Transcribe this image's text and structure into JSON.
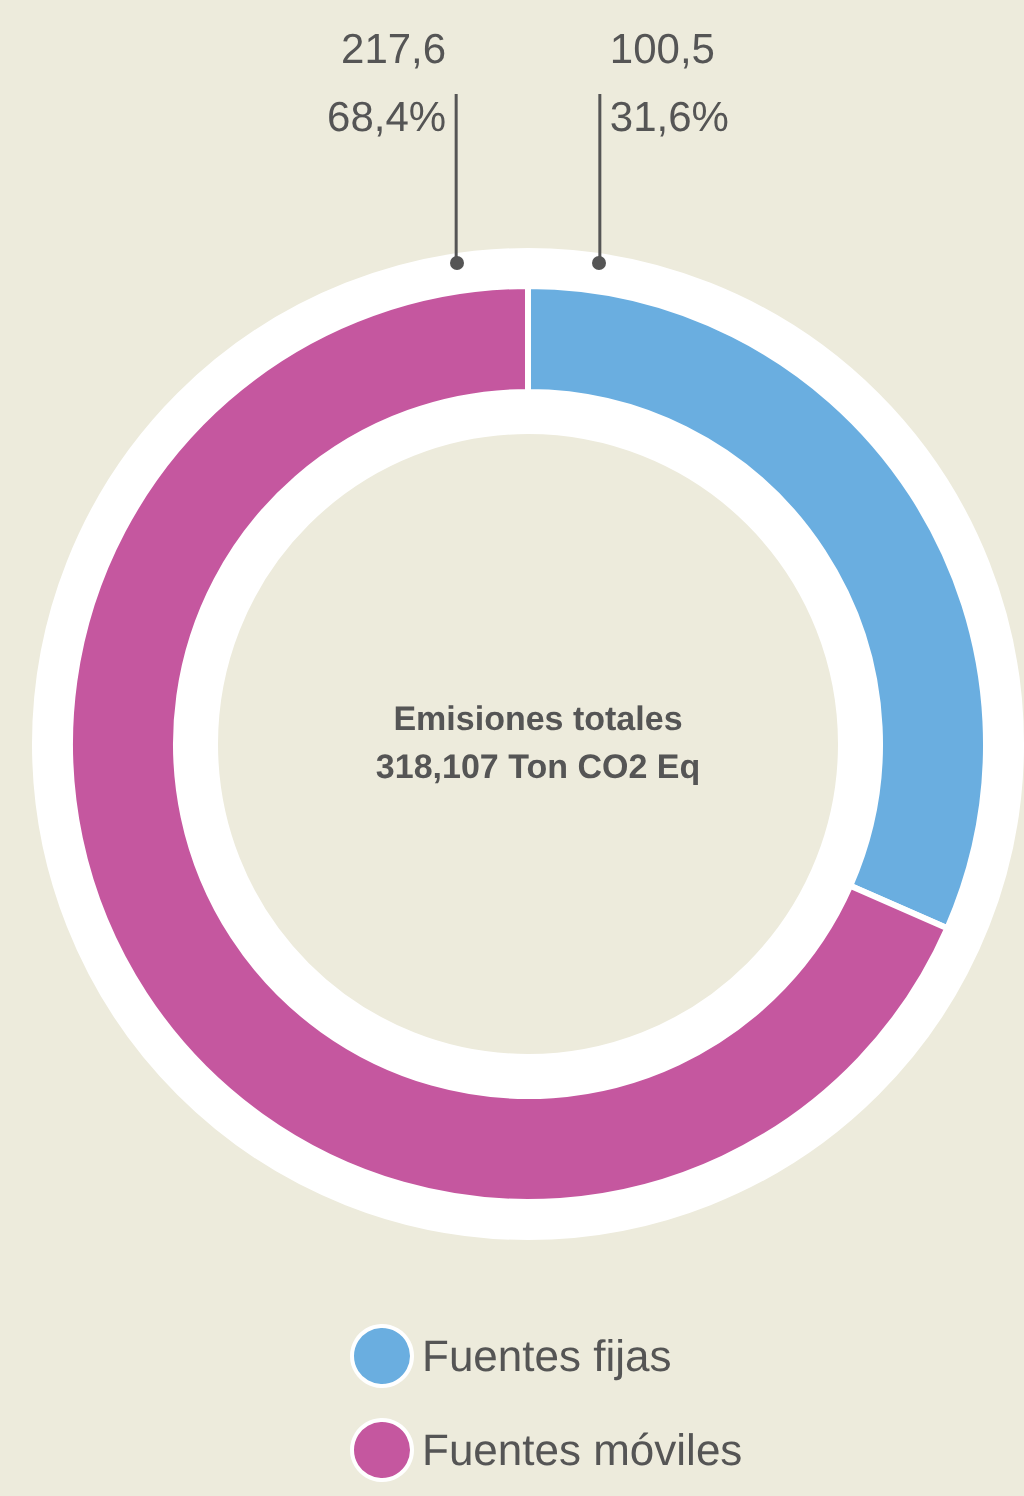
{
  "chart_data": {
    "type": "donut",
    "title": "Emisiones totales",
    "subtitle": "318,107 Ton CO2 Eq",
    "categories": [
      "Fuentes fijas",
      "Fuentes móviles"
    ],
    "values": [
      100.5,
      217.6
    ],
    "colors": [
      "#6aaee0",
      "#c5579f"
    ],
    "value_labels": [
      "100,5\n31,6%",
      "217,6\n68,4%"
    ],
    "legend": "bottom"
  }
}
